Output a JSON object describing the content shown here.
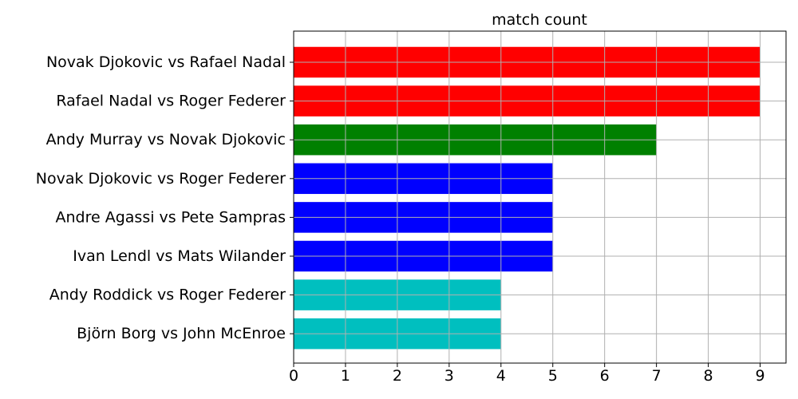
{
  "chart_data": {
    "type": "bar",
    "orientation": "horizontal",
    "title": "match count",
    "xlabel": "",
    "ylabel": "",
    "xlim": [
      0,
      9.5
    ],
    "xticks": [
      0,
      1,
      2,
      3,
      4,
      5,
      6,
      7,
      8,
      9
    ],
    "grid": true,
    "categories": [
      "Novak Djokovic vs Rafael Nadal",
      "Rafael Nadal vs Roger Federer",
      "Andy Murray vs Novak Djokovic",
      "Novak Djokovic vs Roger Federer",
      "Andre Agassi vs Pete Sampras",
      "Ivan Lendl vs Mats Wilander",
      "Andy Roddick vs Roger Federer",
      "Björn Borg vs John McEnroe"
    ],
    "values": [
      9,
      9,
      7,
      5,
      5,
      5,
      4,
      4
    ],
    "colors": [
      "#ff0000",
      "#ff0000",
      "#008000",
      "#0000ff",
      "#0000ff",
      "#0000ff",
      "#00bfbf",
      "#00bfbf"
    ]
  }
}
